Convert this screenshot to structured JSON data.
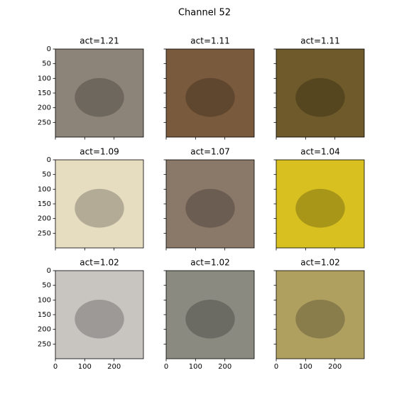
{
  "title": "Channel 52",
  "xlim": [
    0,
    300
  ],
  "ylim": [
    0,
    300
  ],
  "xticks": [
    0,
    100,
    200
  ],
  "yticks": [
    0,
    50,
    100,
    150,
    200,
    250
  ],
  "panels": [
    {
      "title": "act=1.21",
      "color": "#8c8478"
    },
    {
      "title": "act=1.11",
      "color": "#7a5a3c"
    },
    {
      "title": "act=1.11",
      "color": "#6e5a2a"
    },
    {
      "title": "act=1.09",
      "color": "#e6dcc0"
    },
    {
      "title": "act=1.07",
      "color": "#8a7868"
    },
    {
      "title": "act=1.04",
      "color": "#d8c020"
    },
    {
      "title": "act=1.02",
      "color": "#c8c4c0"
    },
    {
      "title": "act=1.02",
      "color": "#8a8a80"
    },
    {
      "title": "act=1.02",
      "color": "#b0a060"
    }
  ]
}
